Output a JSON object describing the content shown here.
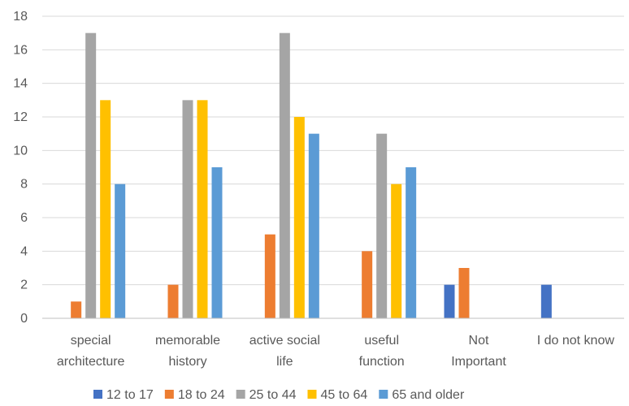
{
  "chart_data": {
    "type": "bar",
    "categories": [
      [
        "special",
        "architecture"
      ],
      [
        "memorable",
        "history"
      ],
      [
        "active social",
        "life"
      ],
      [
        "useful",
        "function"
      ],
      [
        "Not",
        "Important"
      ],
      [
        "I do not know"
      ]
    ],
    "series": [
      {
        "name": "12 to 17",
        "color": "#4472C4",
        "values": [
          0,
          0,
          0,
          0,
          2,
          2
        ]
      },
      {
        "name": "18 to 24",
        "color": "#ED7D31",
        "values": [
          1,
          2,
          5,
          4,
          3,
          0
        ]
      },
      {
        "name": "25 to 44",
        "color": "#A5A5A5",
        "values": [
          17,
          13,
          17,
          11,
          0,
          0
        ]
      },
      {
        "name": "45 to 64",
        "color": "#FFC000",
        "values": [
          13,
          13,
          12,
          8,
          0,
          0
        ]
      },
      {
        "name": "65 and older",
        "color": "#5B9BD5",
        "values": [
          8,
          9,
          11,
          9,
          0,
          0
        ]
      }
    ],
    "ylim": [
      0,
      18
    ],
    "yticks": [
      0,
      2,
      4,
      6,
      8,
      10,
      12,
      14,
      16,
      18
    ],
    "grid": true,
    "legend_position": "bottom",
    "gridline_color": "#D9D9D9",
    "axis_color": "#BFBFBF"
  }
}
